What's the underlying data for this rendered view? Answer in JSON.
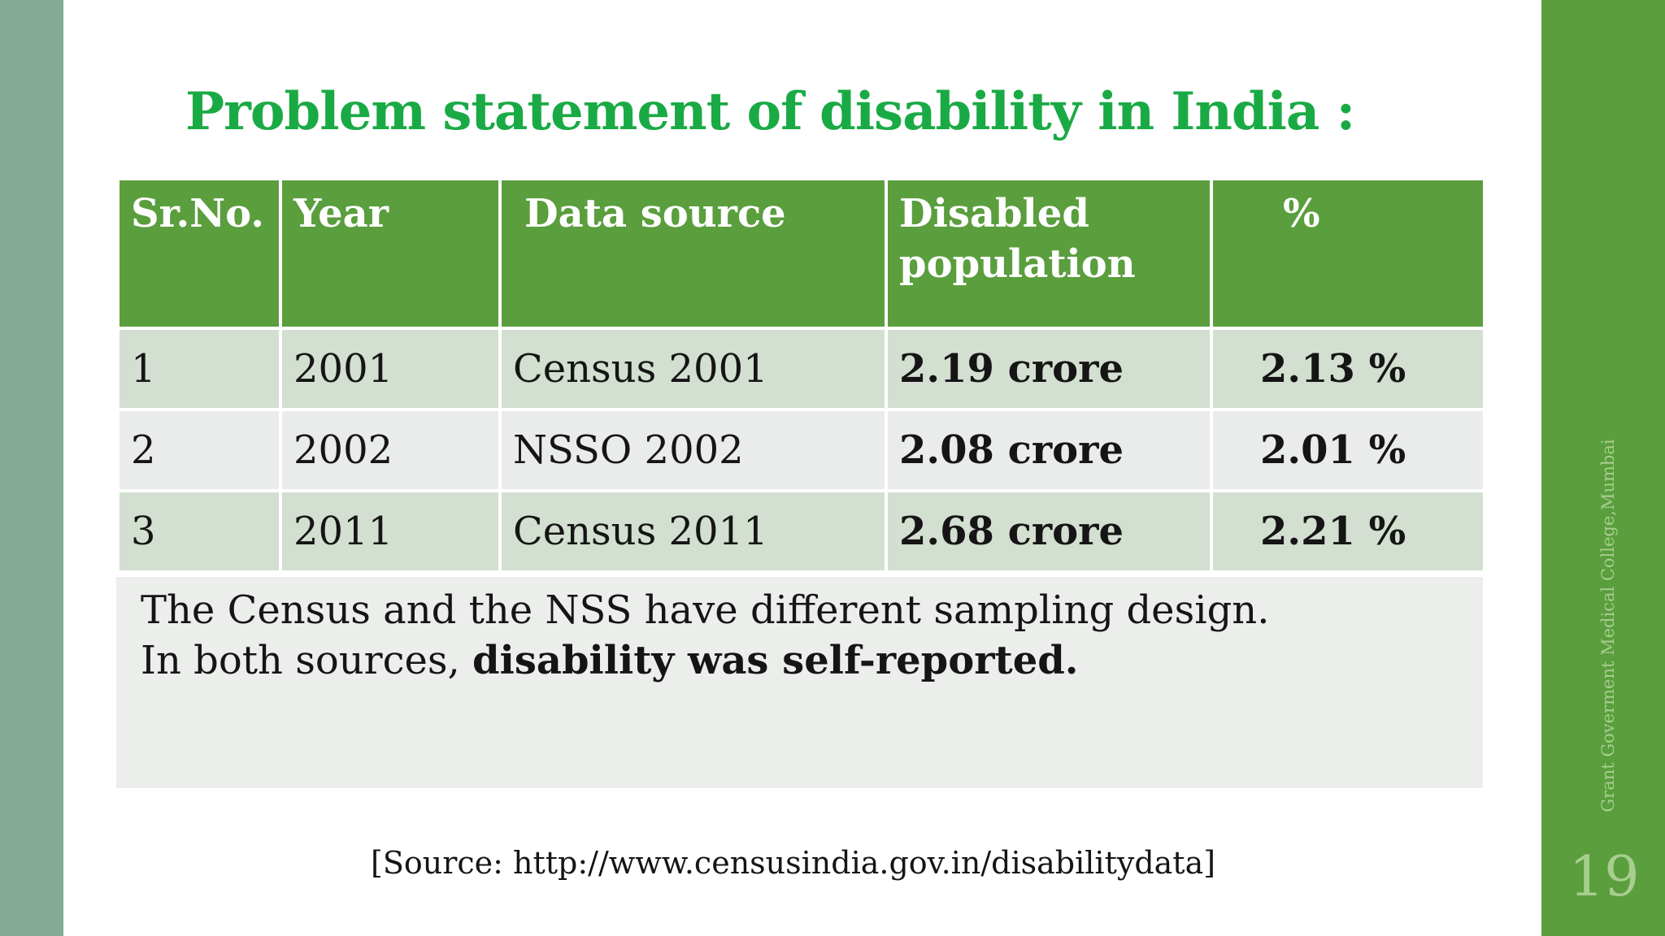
{
  "slide": {
    "title": "Problem statement of  disability in India :",
    "table": {
      "headers": [
        "Sr.No.",
        "Year",
        "Data source",
        "Disabled population",
        "%"
      ],
      "rows": [
        [
          "1",
          "2001",
          "Census 2001",
          "2.19 crore",
          "2.13 %"
        ],
        [
          "2",
          "2002",
          "NSSO 2002",
          "2.08 crore",
          "2.01 %"
        ],
        [
          "3",
          "2011",
          "Census 2011",
          "2.68 crore",
          "2.21 %"
        ]
      ]
    },
    "note": {
      "line1": "The Census and the NSS have different sampling design.",
      "line2_prefix": "In both sources, ",
      "line2_bold": "disability was self-reported."
    },
    "source": "[Source: http://www.censusindia.gov.in/disabilitydata]",
    "side_text": "Grant Goverment Medical College,Mumbai",
    "slide_number": "19"
  },
  "colors": {
    "title": "#1aaa45",
    "header_bg": "#5a9e3d",
    "row_odd": "#d3dfd0",
    "row_even": "#e9ecea",
    "left_bar": "#84a994",
    "right_bar": "#5a9e3d"
  }
}
